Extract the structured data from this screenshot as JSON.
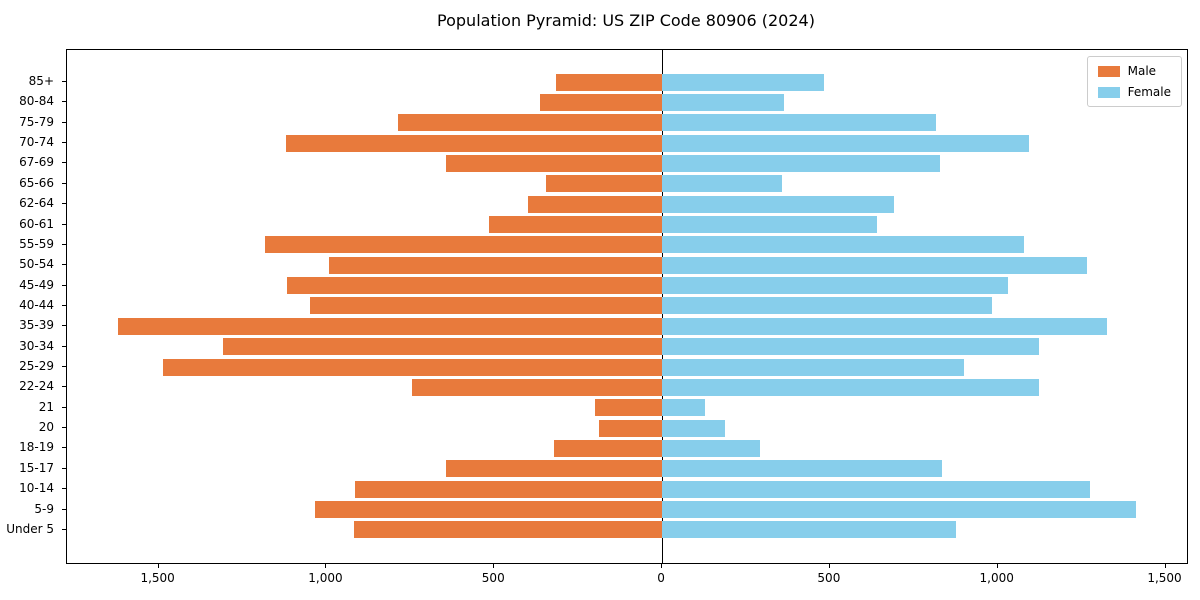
{
  "title": "Population Pyramid: US ZIP Code 80906 (2024)",
  "chart_data": {
    "type": "bar",
    "variant": "population-pyramid",
    "orientation": "horizontal",
    "title": "Population Pyramid: US ZIP Code 80906 (2024)",
    "xlabel": "",
    "ylabel": "",
    "categories_top_to_bottom": [
      "85+",
      "80-84",
      "75-79",
      "70-74",
      "67-69",
      "65-66",
      "62-64",
      "60-61",
      "55-59",
      "50-54",
      "45-49",
      "40-44",
      "35-39",
      "30-34",
      "25-29",
      "22-24",
      "21",
      "20",
      "18-19",
      "15-17",
      "10-14",
      "5-9",
      "Under 5"
    ],
    "series": [
      {
        "name": "Male",
        "side": "left",
        "color": "#e87a3c",
        "values": [
          317,
          364,
          787,
          1120,
          643,
          347,
          398,
          515,
          1182,
          992,
          1118,
          1050,
          1621,
          1307,
          1487,
          745,
          200,
          187,
          322,
          644,
          914,
          1035,
          917
        ]
      },
      {
        "name": "Female",
        "side": "right",
        "color": "#87ceeb",
        "values": [
          482,
          362,
          815,
          1092,
          827,
          358,
          690,
          639,
          1078,
          1266,
          1030,
          984,
          1327,
          1122,
          901,
          1122,
          129,
          187,
          291,
          833,
          1276,
          1412,
          877
        ]
      }
    ],
    "xlim": [
      -1773,
      1564
    ],
    "x_ticks": [
      -1500,
      -1000,
      -500,
      0,
      500,
      1000,
      1500
    ],
    "x_tick_labels": [
      "1,500",
      "1,000",
      "500",
      "0",
      "500",
      "1,000",
      "1,500"
    ],
    "grid": false,
    "legend": {
      "position": "upper right",
      "entries": [
        "Male",
        "Female"
      ]
    }
  },
  "colors": {
    "male": "#e87a3c",
    "female": "#87ceeb",
    "axis": "#000000",
    "legend_border": "#cccccc",
    "background": "#ffffff"
  }
}
